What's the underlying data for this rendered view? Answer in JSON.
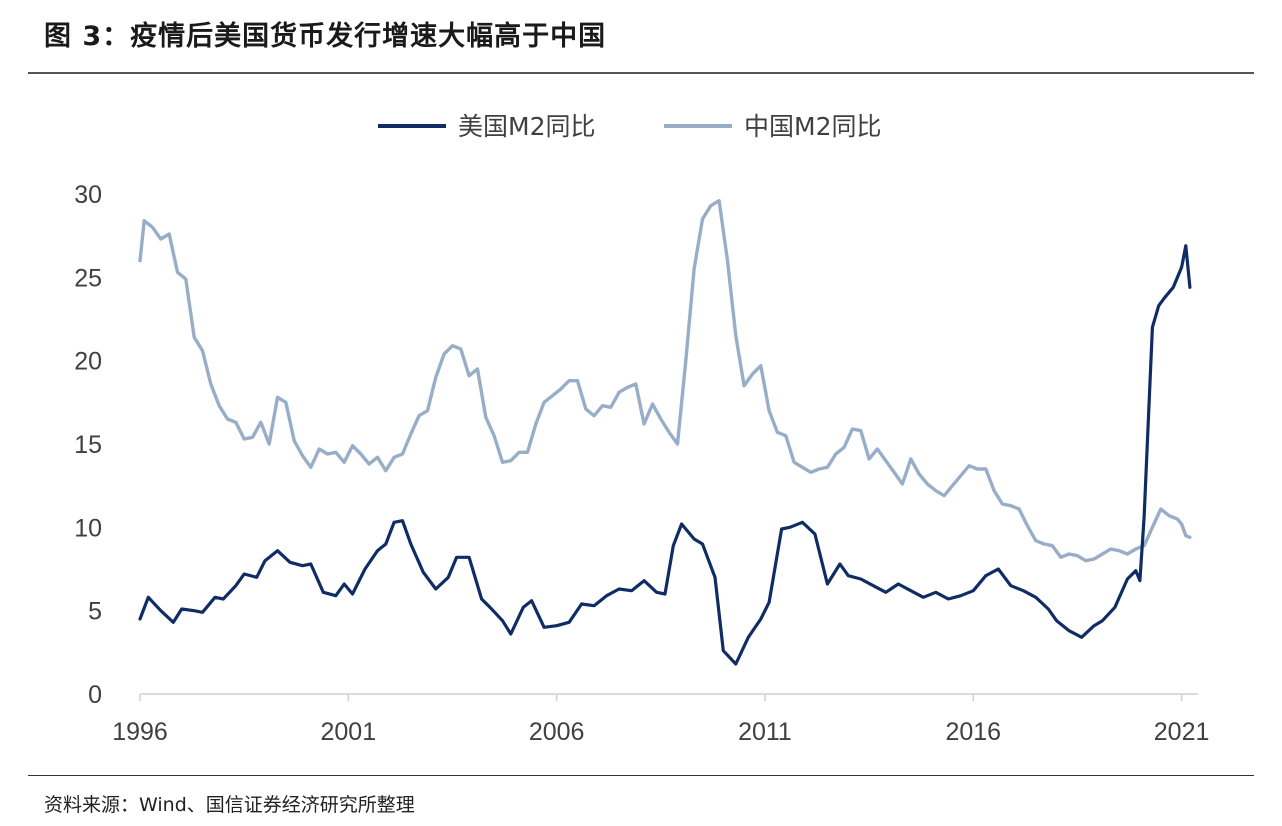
{
  "figure": {
    "title": "图 3：疫情后美国货币发行增速大幅高于中国",
    "source": "资料来源：Wind、国信证券经济研究所整理"
  },
  "colors": {
    "us": "#0f2d64",
    "cn": "#98aec8",
    "axis": "#d0d0d0",
    "text": "#404040"
  },
  "chart_data": {
    "type": "line",
    "title": "",
    "xlabel": "",
    "ylabel": "",
    "xlim": [
      1996,
      2021.25
    ],
    "ylim": [
      0,
      30
    ],
    "yticks": [
      0,
      5,
      10,
      15,
      20,
      25,
      30
    ],
    "xticks": [
      1996,
      2001,
      2006,
      2011,
      2016,
      2021
    ],
    "legend_position": "top-center",
    "series": [
      {
        "name": "美国M2同比",
        "key": "us",
        "x": [
          1996.0,
          1996.2,
          1996.5,
          1996.8,
          1997.0,
          1997.3,
          1997.5,
          1997.8,
          1998.0,
          1998.3,
          1998.5,
          1998.8,
          1999.0,
          1999.3,
          1999.6,
          1999.9,
          2000.1,
          2000.4,
          2000.7,
          2000.9,
          2001.1,
          2001.4,
          2001.7,
          2001.9,
          2002.1,
          2002.3,
          2002.5,
          2002.8,
          2003.1,
          2003.4,
          2003.6,
          2003.9,
          2004.2,
          2004.4,
          2004.7,
          2004.9,
          2005.2,
          2005.4,
          2005.7,
          2006.0,
          2006.3,
          2006.6,
          2006.9,
          2007.2,
          2007.5,
          2007.8,
          2008.1,
          2008.4,
          2008.6,
          2008.8,
          2009.0,
          2009.3,
          2009.5,
          2009.8,
          2010.0,
          2010.3,
          2010.6,
          2010.9,
          2011.1,
          2011.4,
          2011.6,
          2011.9,
          2012.2,
          2012.5,
          2012.8,
          2013.0,
          2013.3,
          2013.6,
          2013.9,
          2014.2,
          2014.5,
          2014.8,
          2015.1,
          2015.4,
          2015.7,
          2016.0,
          2016.3,
          2016.6,
          2016.9,
          2017.2,
          2017.5,
          2017.8,
          2018.0,
          2018.3,
          2018.6,
          2018.9,
          2019.1,
          2019.4,
          2019.7,
          2019.9,
          2020.0,
          2020.1,
          2020.3,
          2020.45,
          2020.6,
          2020.8,
          2021.0,
          2021.1,
          2021.2
        ],
        "values": [
          4.5,
          5.8,
          5.0,
          4.3,
          5.1,
          5.0,
          4.9,
          5.8,
          5.7,
          6.5,
          7.2,
          7.0,
          8.0,
          8.6,
          7.9,
          7.7,
          7.8,
          6.1,
          5.9,
          6.6,
          6.0,
          7.5,
          8.6,
          9.0,
          10.3,
          10.4,
          9.0,
          7.3,
          6.3,
          7.0,
          8.2,
          8.2,
          5.7,
          5.2,
          4.4,
          3.6,
          5.2,
          5.6,
          4.0,
          4.1,
          4.3,
          5.4,
          5.3,
          5.9,
          6.3,
          6.2,
          6.8,
          6.1,
          6.0,
          8.9,
          10.2,
          9.3,
          9.0,
          7.0,
          2.6,
          1.8,
          3.4,
          4.5,
          5.5,
          9.9,
          10.0,
          10.3,
          9.6,
          6.6,
          7.8,
          7.1,
          6.9,
          6.5,
          6.1,
          6.6,
          6.2,
          5.8,
          6.1,
          5.7,
          5.9,
          6.2,
          7.1,
          7.5,
          6.5,
          6.2,
          5.8,
          5.1,
          4.4,
          3.8,
          3.4,
          4.1,
          4.4,
          5.2,
          6.9,
          7.4,
          6.8,
          10.6,
          22.0,
          23.3,
          23.8,
          24.4,
          25.6,
          26.9,
          24.4
        ]
      },
      {
        "name": "中国M2同比",
        "key": "cn",
        "x": [
          1996.0,
          1996.1,
          1996.3,
          1996.5,
          1996.7,
          1996.9,
          1997.1,
          1997.3,
          1997.5,
          1997.7,
          1997.9,
          1998.1,
          1998.3,
          1998.5,
          1998.7,
          1998.9,
          1999.1,
          1999.3,
          1999.5,
          1999.7,
          1999.9,
          2000.1,
          2000.3,
          2000.5,
          2000.7,
          2000.9,
          2001.1,
          2001.3,
          2001.5,
          2001.7,
          2001.9,
          2002.1,
          2002.3,
          2002.5,
          2002.7,
          2002.9,
          2003.1,
          2003.3,
          2003.5,
          2003.7,
          2003.9,
          2004.1,
          2004.3,
          2004.5,
          2004.7,
          2004.9,
          2005.1,
          2005.3,
          2005.5,
          2005.7,
          2005.9,
          2006.1,
          2006.3,
          2006.5,
          2006.7,
          2006.9,
          2007.1,
          2007.3,
          2007.5,
          2007.7,
          2007.9,
          2008.1,
          2008.3,
          2008.5,
          2008.7,
          2008.9,
          2009.1,
          2009.3,
          2009.5,
          2009.7,
          2009.9,
          2010.1,
          2010.3,
          2010.5,
          2010.7,
          2010.9,
          2011.1,
          2011.3,
          2011.5,
          2011.7,
          2011.9,
          2012.1,
          2012.3,
          2012.5,
          2012.7,
          2012.9,
          2013.1,
          2013.3,
          2013.5,
          2013.7,
          2013.9,
          2014.1,
          2014.3,
          2014.5,
          2014.7,
          2014.9,
          2015.1,
          2015.3,
          2015.5,
          2015.7,
          2015.9,
          2016.1,
          2016.3,
          2016.5,
          2016.7,
          2016.9,
          2017.1,
          2017.3,
          2017.5,
          2017.7,
          2017.9,
          2018.1,
          2018.3,
          2018.5,
          2018.7,
          2018.9,
          2019.1,
          2019.3,
          2019.5,
          2019.7,
          2019.9,
          2020.1,
          2020.3,
          2020.5,
          2020.7,
          2020.9,
          2021.0,
          2021.1,
          2021.2
        ],
        "values": [
          26.0,
          28.4,
          28.0,
          27.3,
          27.6,
          25.3,
          24.9,
          21.4,
          20.6,
          18.6,
          17.3,
          16.5,
          16.3,
          15.3,
          15.4,
          16.3,
          15.0,
          17.8,
          17.5,
          15.2,
          14.3,
          13.6,
          14.7,
          14.4,
          14.5,
          13.9,
          14.9,
          14.4,
          13.8,
          14.2,
          13.4,
          14.2,
          14.4,
          15.6,
          16.7,
          17.0,
          19.0,
          20.4,
          20.9,
          20.7,
          19.1,
          19.5,
          16.6,
          15.5,
          13.9,
          14.0,
          14.5,
          14.5,
          16.2,
          17.5,
          17.9,
          18.3,
          18.8,
          18.8,
          17.1,
          16.7,
          17.3,
          17.2,
          18.1,
          18.4,
          18.6,
          16.2,
          17.4,
          16.5,
          15.7,
          15.0,
          20.0,
          25.5,
          28.5,
          29.3,
          29.6,
          26.0,
          21.5,
          18.5,
          19.2,
          19.7,
          17.0,
          15.7,
          15.5,
          13.9,
          13.6,
          13.3,
          13.5,
          13.6,
          14.4,
          14.8,
          15.9,
          15.8,
          14.1,
          14.7,
          14.0,
          13.3,
          12.6,
          14.1,
          13.2,
          12.6,
          12.2,
          11.9,
          12.5,
          13.1,
          13.7,
          13.5,
          13.5,
          12.2,
          11.4,
          11.3,
          11.1,
          10.1,
          9.2,
          9.0,
          8.9,
          8.2,
          8.4,
          8.3,
          8.0,
          8.1,
          8.4,
          8.7,
          8.6,
          8.4,
          8.7,
          8.9,
          10.0,
          11.1,
          10.7,
          10.5,
          10.2,
          9.5,
          9.4
        ]
      }
    ]
  }
}
